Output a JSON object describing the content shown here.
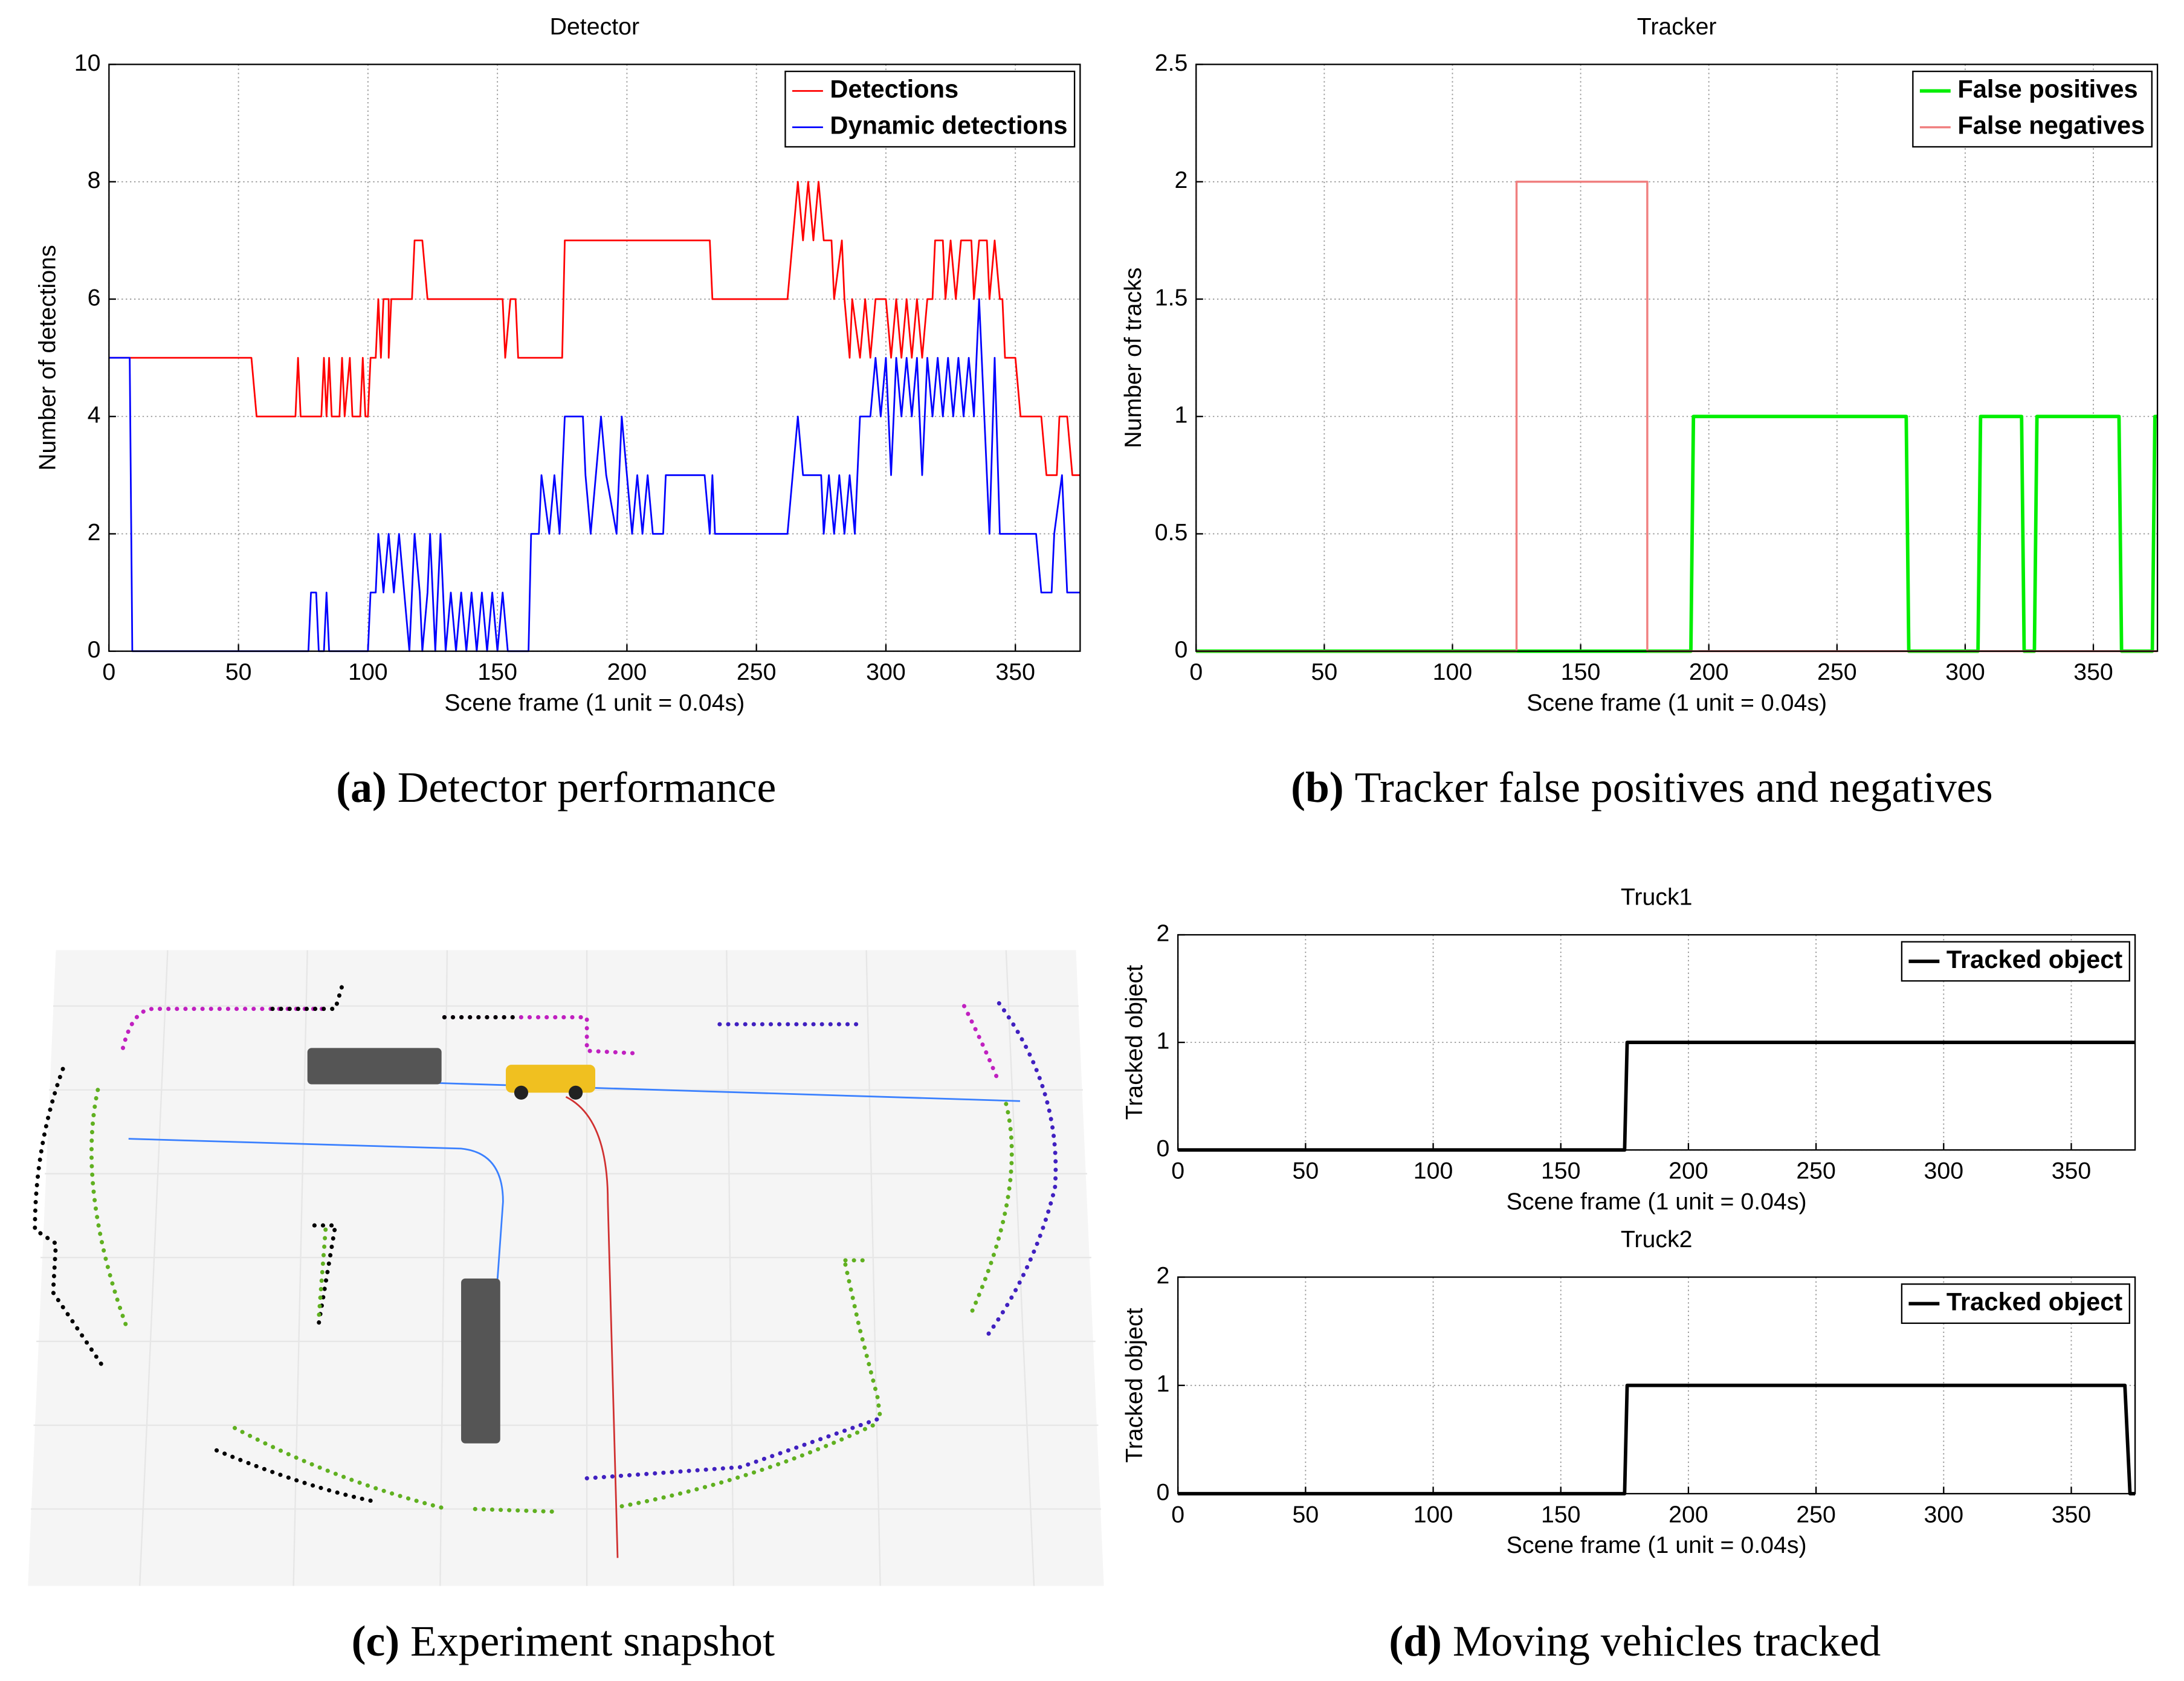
{
  "chart_data": [
    {
      "type": "line",
      "title": "Detector",
      "xlabel": "Scene frame (1 unit = 0.04s)",
      "ylabel": "Number of detections",
      "xlim": [
        0,
        375
      ],
      "ylim": [
        0,
        10
      ],
      "xticks": [
        0,
        50,
        100,
        150,
        200,
        250,
        300,
        350
      ],
      "yticks": [
        0,
        2,
        4,
        6,
        8,
        10
      ],
      "grid": true,
      "legend": "upper right",
      "series": [
        {
          "name": "Detections",
          "color": "#ff0000",
          "linewidth": 1.2,
          "x": [
            0,
            55,
            57,
            72,
            73,
            74,
            82,
            83,
            84,
            85,
            86,
            89,
            90,
            91,
            93,
            94,
            97,
            98,
            99,
            100,
            101,
            103,
            104,
            105,
            106,
            108,
            108,
            109,
            117,
            118,
            121,
            123,
            152,
            153,
            155,
            157,
            158,
            175,
            176,
            232,
            233,
            262,
            264,
            266,
            268,
            270,
            272,
            274,
            276,
            279,
            280,
            283,
            284,
            286,
            287,
            290,
            292,
            294,
            296,
            300,
            302,
            304,
            306,
            308,
            310,
            312,
            314,
            316,
            318,
            319,
            322,
            323,
            325,
            327,
            329,
            333,
            334,
            336,
            339,
            340,
            342,
            344,
            345,
            346,
            350,
            352,
            360,
            362,
            366,
            367,
            370,
            372,
            375
          ],
          "values": [
            5,
            5,
            4,
            4,
            5,
            4,
            4,
            5,
            4,
            5,
            4,
            4,
            5,
            4,
            5,
            4,
            4,
            5,
            4,
            4,
            5,
            5,
            6,
            5,
            6,
            6,
            5,
            6,
            6,
            7,
            7,
            6,
            6,
            5,
            6,
            6,
            5,
            5,
            7,
            7,
            6,
            6,
            7,
            8,
            7,
            8,
            7,
            8,
            7,
            7,
            6,
            7,
            6,
            5,
            6,
            5,
            6,
            5,
            6,
            6,
            5,
            6,
            5,
            6,
            5,
            6,
            5,
            6,
            6,
            7,
            7,
            6,
            7,
            6,
            7,
            7,
            6,
            7,
            7,
            6,
            7,
            6,
            6,
            5,
            5,
            4,
            4,
            3,
            3,
            4,
            4,
            3,
            3
          ]
        },
        {
          "name": "Dynamic detections",
          "color": "#0000ff",
          "linewidth": 1.2,
          "x": [
            0,
            8,
            9,
            77,
            78,
            80,
            81,
            83,
            84,
            85,
            100,
            101,
            103,
            104,
            106,
            108,
            110,
            112,
            114,
            116,
            117,
            118,
            120,
            121,
            123,
            124,
            126,
            128,
            130,
            132,
            134,
            136,
            138,
            140,
            142,
            144,
            146,
            148,
            150,
            152,
            154,
            162,
            163,
            166,
            167,
            170,
            172,
            174,
            176,
            183,
            184,
            186,
            188,
            190,
            192,
            196,
            197,
            198,
            200,
            202,
            204,
            206,
            208,
            210,
            214,
            215,
            230,
            232,
            233,
            234,
            262,
            264,
            266,
            268,
            275,
            276,
            278,
            280,
            282,
            284,
            286,
            288,
            290,
            294,
            296,
            298,
            300,
            302,
            304,
            306,
            308,
            310,
            312,
            314,
            316,
            318,
            320,
            322,
            324,
            326,
            328,
            330,
            332,
            334,
            336,
            338,
            340,
            342,
            344,
            358,
            360,
            364,
            365,
            368,
            370,
            375
          ],
          "values": [
            5,
            5,
            0,
            0,
            1,
            1,
            0,
            0,
            1,
            0,
            0,
            1,
            1,
            2,
            1,
            2,
            1,
            2,
            1,
            0,
            1,
            2,
            1,
            0,
            1,
            2,
            0,
            2,
            0,
            1,
            0,
            1,
            0,
            1,
            0,
            1,
            0,
            1,
            0,
            1,
            0,
            0,
            2,
            2,
            3,
            2,
            3,
            2,
            4,
            4,
            3,
            2,
            3,
            4,
            3,
            2,
            3,
            4,
            3,
            2,
            3,
            2,
            3,
            2,
            2,
            3,
            3,
            2,
            3,
            2,
            2,
            3,
            4,
            3,
            3,
            2,
            3,
            2,
            3,
            2,
            3,
            2,
            4,
            4,
            5,
            4,
            5,
            3,
            5,
            4,
            5,
            4,
            5,
            3,
            5,
            4,
            5,
            4,
            5,
            4,
            5,
            4,
            5,
            4,
            6,
            4,
            2,
            5,
            2,
            2,
            1,
            1,
            2,
            3,
            1,
            1
          ]
        }
      ]
    },
    {
      "type": "line",
      "title": "Tracker",
      "xlabel": "Scene frame (1 unit = 0.04s)",
      "ylabel": "Number of tracks",
      "xlim": [
        0,
        375
      ],
      "ylim": [
        0,
        2.5
      ],
      "xticks": [
        0,
        50,
        100,
        150,
        200,
        250,
        300,
        350
      ],
      "yticks": [
        0,
        0.5,
        1,
        1.5,
        2,
        2.5
      ],
      "grid": true,
      "legend": "upper right",
      "series": [
        {
          "name": "False positives",
          "color": "#00ee00",
          "linewidth": 2.5,
          "x": [
            0,
            193,
            194,
            277,
            278,
            305,
            306,
            322,
            323,
            327,
            328,
            360,
            361,
            373,
            374,
            375
          ],
          "values": [
            0,
            0,
            1,
            1,
            0,
            0,
            1,
            1,
            0,
            0,
            1,
            1,
            0,
            0,
            1,
            1
          ]
        },
        {
          "name": "False negatives",
          "color": "#f08080",
          "linewidth": 1.5,
          "x": [
            0,
            125,
            125,
            176,
            176,
            375
          ],
          "values": [
            0,
            0,
            2,
            2,
            0,
            0
          ]
        }
      ]
    },
    {
      "type": "line",
      "title": "Truck1",
      "xlabel": "Scene frame (1 unit = 0.04s)",
      "ylabel": "Tracked object",
      "xlim": [
        0,
        375
      ],
      "ylim": [
        0,
        2
      ],
      "xticks": [
        0,
        50,
        100,
        150,
        200,
        250,
        300,
        350
      ],
      "yticks": [
        0,
        1,
        2
      ],
      "grid": true,
      "legend": "upper right",
      "series": [
        {
          "name": "Tracked object",
          "color": "#000000",
          "linewidth": 2.5,
          "x": [
            0,
            175,
            176,
            375
          ],
          "values": [
            0,
            0,
            1,
            1
          ]
        }
      ]
    },
    {
      "type": "line",
      "title": "Truck2",
      "xlabel": "Scene frame (1 unit = 0.04s)",
      "ylabel": "Tracked object",
      "xlim": [
        0,
        375
      ],
      "ylim": [
        0,
        2
      ],
      "xticks": [
        0,
        50,
        100,
        150,
        200,
        250,
        300,
        350
      ],
      "yticks": [
        0,
        1,
        2
      ],
      "grid": true,
      "legend": "upper right",
      "series": [
        {
          "name": "Tracked object",
          "color": "#000000",
          "linewidth": 2.5,
          "x": [
            0,
            175,
            176,
            371,
            373,
            375
          ],
          "values": [
            0,
            0,
            1,
            1,
            0,
            0
          ]
        }
      ]
    }
  ],
  "captions": [
    {
      "label": "(a)",
      "text": "Detector performance"
    },
    {
      "label": "(b)",
      "text": "Tracker false positives and negatives"
    },
    {
      "label": "(c)",
      "text": "Experiment snapshot"
    },
    {
      "label": "(d)",
      "text": "Moving vehicles tracked"
    }
  ]
}
